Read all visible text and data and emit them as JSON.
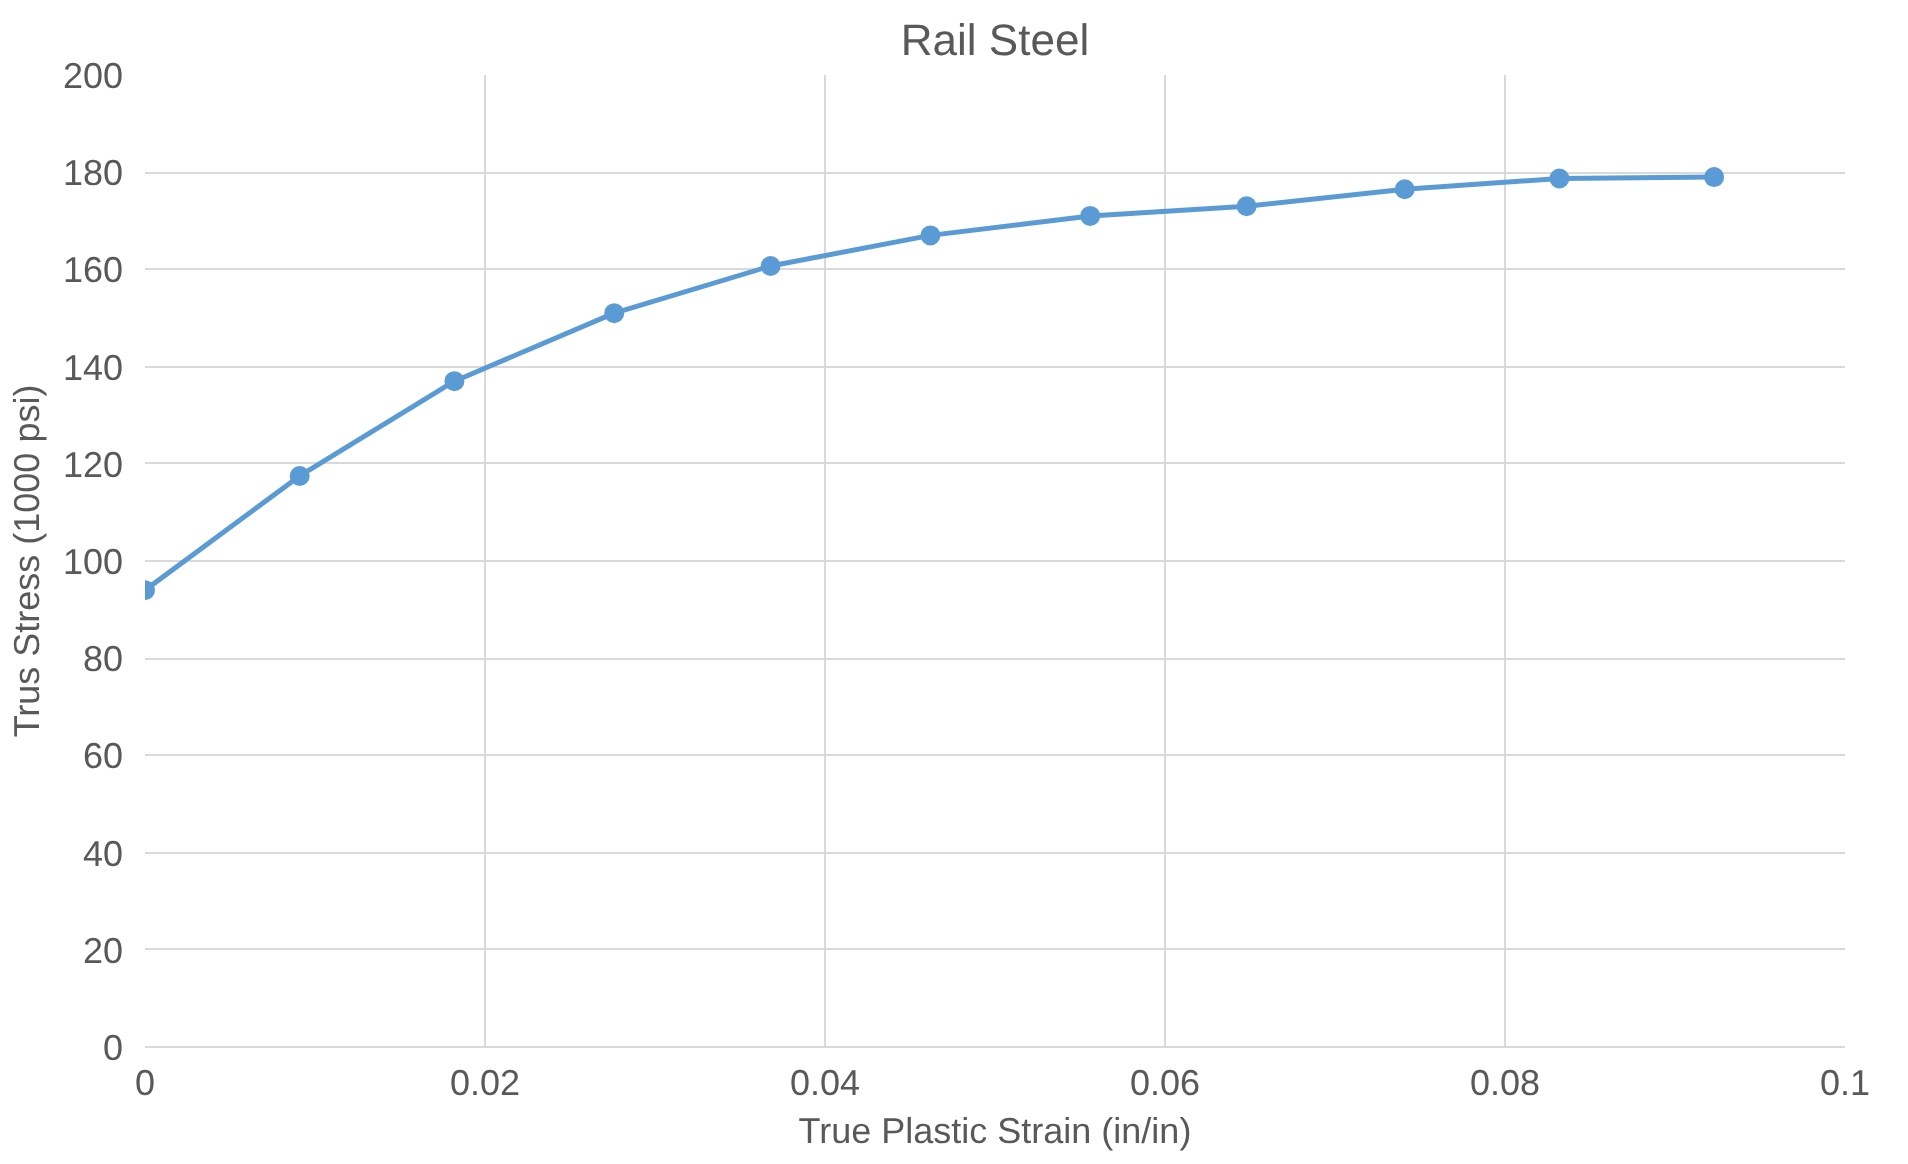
{
  "chart_data": {
    "type": "line",
    "title": "Rail Steel",
    "xlabel": "True Plastic Strain (in/in)",
    "ylabel": "Trus Stress (1000 psi)",
    "x": [
      0,
      0.0091,
      0.0182,
      0.0276,
      0.0368,
      0.0462,
      0.0556,
      0.0648,
      0.0741,
      0.0832,
      0.0923
    ],
    "series": [
      {
        "color": "#5b9bd5",
        "values": [
          94,
          117.5,
          137,
          151,
          160.7,
          167,
          171,
          173,
          176.5,
          178.7,
          179
        ]
      }
    ],
    "xlim": [
      0,
      0.1
    ],
    "xticks": [
      0,
      0.02,
      0.04,
      0.06,
      0.08,
      0.1
    ],
    "ylim": [
      0,
      200
    ],
    "yticks": [
      0,
      20,
      40,
      60,
      80,
      100,
      120,
      140,
      160,
      180,
      200
    ],
    "grid": true,
    "marker": "circle",
    "line_style": "solid"
  }
}
